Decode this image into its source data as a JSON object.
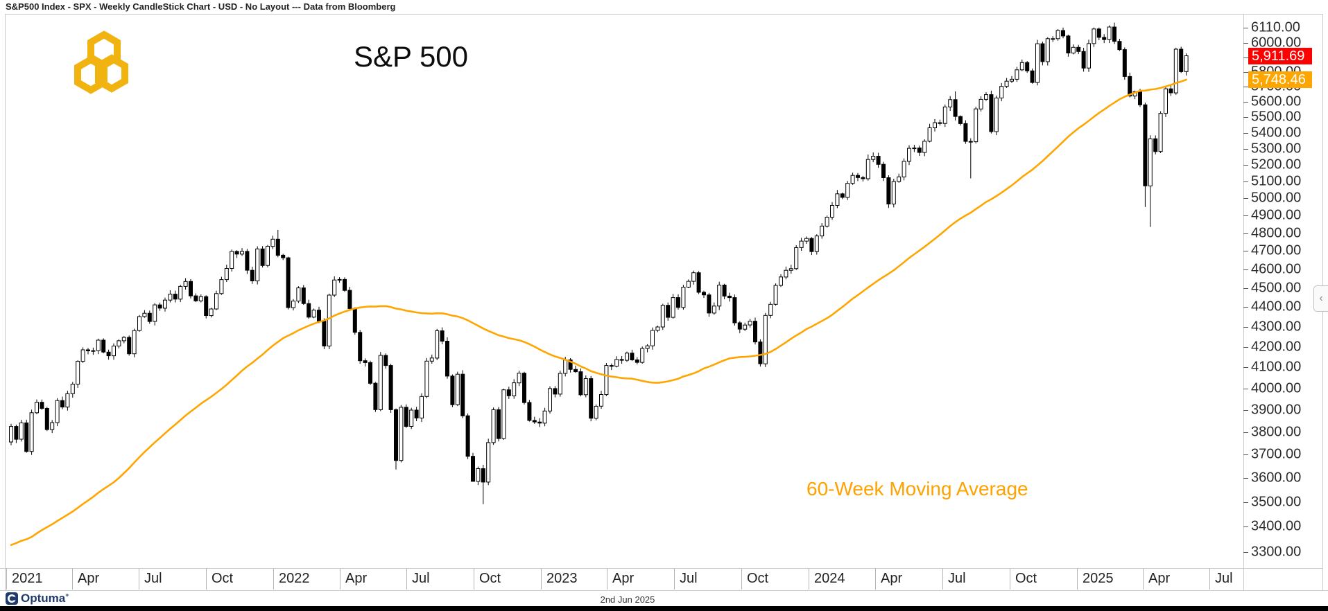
{
  "window": {
    "title_bar": "S&P500 Index - SPX - Weekly CandleStick Chart - USD - No Layout --- Data from Bloomberg",
    "footer_brand": "Optuma",
    "footer_brand_mark": "+",
    "footer_date": "2nd Jun 2025",
    "collapse_chevron": "‹"
  },
  "chart": {
    "title": "S&P 500",
    "ma_annotation": "60-Week Moving Average",
    "last_price_label": "5,911.69",
    "ma_price_label": "5,748.46",
    "colors": {
      "ma_line": "#FFA500",
      "last_price_bg": "#FF0000",
      "ma_price_bg": "#FFA500",
      "candle_up": "#FFFFFF",
      "candle_down": "#000000",
      "candle_stroke": "#000000",
      "brand_gold": "#F0B30F",
      "brand_navy": "#1E3A6E"
    }
  },
  "axis": {
    "y_tick_labels": [
      "6110.00",
      "6000.00",
      "5900.00",
      "5800.00",
      "5700.00",
      "5600.00",
      "5500.00",
      "5400.00",
      "5300.00",
      "5200.00",
      "5100.00",
      "5000.00",
      "4900.00",
      "4800.00",
      "4700.00",
      "4600.00",
      "4500.00",
      "4400.00",
      "4300.00",
      "4200.00",
      "4100.00",
      "4000.00",
      "3900.00",
      "3800.00",
      "3700.00",
      "3600.00",
      "3500.00",
      "3400.00",
      "3300.00"
    ]
  },
  "chart_data": {
    "type": "candlestick",
    "symbol": "SPX",
    "interval": "weekly",
    "y_axis_max": 6110,
    "y_axis_min": 3300,
    "first_week": "2021-01-08",
    "prev_close": 3756,
    "weekly_closes": [
      3825,
      3768,
      3841,
      3714,
      3887,
      3935,
      3907,
      3811,
      3842,
      3943,
      3913,
      3975,
      4020,
      4129,
      4185,
      4180,
      4181,
      4233,
      4174,
      4156,
      4204,
      4230,
      4247,
      4166,
      4281,
      4352,
      4369,
      4327,
      4412,
      4395,
      4437,
      4468,
      4442,
      4509,
      4535,
      4459,
      4433,
      4455,
      4357,
      4391,
      4471,
      4545,
      4605,
      4698,
      4683,
      4698,
      4595,
      4538,
      4712,
      4621,
      4726,
      4766,
      4677,
      4663,
      4398,
      4432,
      4501,
      4419,
      4349,
      4385,
      4329,
      4204,
      4463,
      4543,
      4546,
      4488,
      4393,
      4272,
      4132,
      4123,
      4024,
      3901,
      4158,
      4109,
      3901,
      3675,
      3912,
      3825,
      3899,
      3863,
      3962,
      4130,
      4145,
      4280,
      4228,
      4058,
      3924,
      4067,
      3873,
      3693,
      3586,
      3640,
      3583,
      3753,
      3901,
      3771,
      3993,
      3965,
      4026,
      4072,
      3934,
      3852,
      3845,
      3840,
      3895,
      3999,
      3973,
      4071,
      4136,
      4090,
      4079,
      3970,
      4046,
      3862,
      3917,
      3971,
      4109,
      4105,
      4138,
      4134,
      4169,
      4136,
      4124,
      4192,
      4205,
      4282,
      4299,
      4410,
      4348,
      4450,
      4399,
      4505,
      4536,
      4582,
      4478,
      4464,
      4370,
      4406,
      4516,
      4458,
      4450,
      4320,
      4288,
      4309,
      4328,
      4224,
      4117,
      4358,
      4415,
      4514,
      4559,
      4595,
      4604,
      4719,
      4755,
      4770,
      4697,
      4784,
      4840,
      4891,
      4959,
      5027,
      5006,
      5089,
      5137,
      5124,
      5117,
      5234,
      5254,
      5204,
      5123,
      4967,
      5100,
      5128,
      5223,
      5303,
      5305,
      5277,
      5347,
      5432,
      5465,
      5460,
      5567,
      5615,
      5505,
      5459,
      5346,
      5344,
      5554,
      5617,
      5648,
      5408,
      5626,
      5703,
      5738,
      5751,
      5815,
      5865,
      5808,
      5729,
      5996,
      5871,
      6032,
      6032,
      6090,
      6051,
      5931,
      5971,
      5942,
      5827,
      5997,
      6101,
      6041,
      6026,
      6115,
      6013,
      5955,
      5770,
      5639,
      5668,
      5581,
      5074,
      5363,
      5283,
      5525,
      5687,
      5660,
      5958,
      5803,
      5911.69
    ],
    "wick_overrides": {
      "52": {
        "high": 4818
      },
      "75": {
        "low": 3636
      },
      "90": {
        "low": 3584
      },
      "92": {
        "low": 3491
      },
      "146": {
        "low": 4104
      },
      "167": {
        "high": 5264
      },
      "184": {
        "high": 5670
      },
      "187": {
        "low": 5119
      },
      "204": {
        "high": 6100
      },
      "214": {
        "high": 6127
      },
      "215": {
        "high": 6147
      },
      "221": {
        "low": 4950
      },
      "222": {
        "low": 4835
      },
      "227": {
        "high": 5968
      }
    },
    "ma_period": 60,
    "ma_last_value": 5748.46,
    "last_close": 5911.69,
    "ma_seed_closes": [
      3095,
      3110,
      3122,
      3141,
      3146,
      3169,
      3221,
      3240,
      3230,
      3265,
      3288,
      3295,
      3225,
      3248,
      3328,
      3338,
      3150,
      3020,
      2890,
      2850,
      2950,
      3030,
      3090,
      3155,
      3193,
      3220,
      3260,
      3290,
      3310,
      3330,
      3355,
      3380,
      3360,
      3400,
      3430,
      3397,
      3465,
      3427,
      3390,
      3360,
      3340,
      3390,
      3477,
      3484,
      3465,
      3380,
      3509,
      3585,
      3558,
      3638,
      3699,
      3663,
      3709,
      3703,
      3756
    ],
    "x_ticks": [
      {
        "date": "2021-01-01",
        "label": "2021"
      },
      {
        "date": "2021-04-01",
        "label": "Apr"
      },
      {
        "date": "2021-07-01",
        "label": "Jul"
      },
      {
        "date": "2021-10-01",
        "label": "Oct"
      },
      {
        "date": "2022-01-01",
        "label": "2022"
      },
      {
        "date": "2022-04-01",
        "label": "Apr"
      },
      {
        "date": "2022-07-01",
        "label": "Jul"
      },
      {
        "date": "2022-10-01",
        "label": "Oct"
      },
      {
        "date": "2023-01-01",
        "label": "2023"
      },
      {
        "date": "2023-04-01",
        "label": "Apr"
      },
      {
        "date": "2023-07-01",
        "label": "Jul"
      },
      {
        "date": "2023-10-01",
        "label": "Oct"
      },
      {
        "date": "2024-01-01",
        "label": "2024"
      },
      {
        "date": "2024-04-01",
        "label": "Apr"
      },
      {
        "date": "2024-07-01",
        "label": "Jul"
      },
      {
        "date": "2024-10-01",
        "label": "Oct"
      },
      {
        "date": "2025-01-01",
        "label": "2025"
      },
      {
        "date": "2025-04-01",
        "label": "Apr"
      },
      {
        "date": "2025-07-01",
        "label": "Jul"
      }
    ]
  }
}
